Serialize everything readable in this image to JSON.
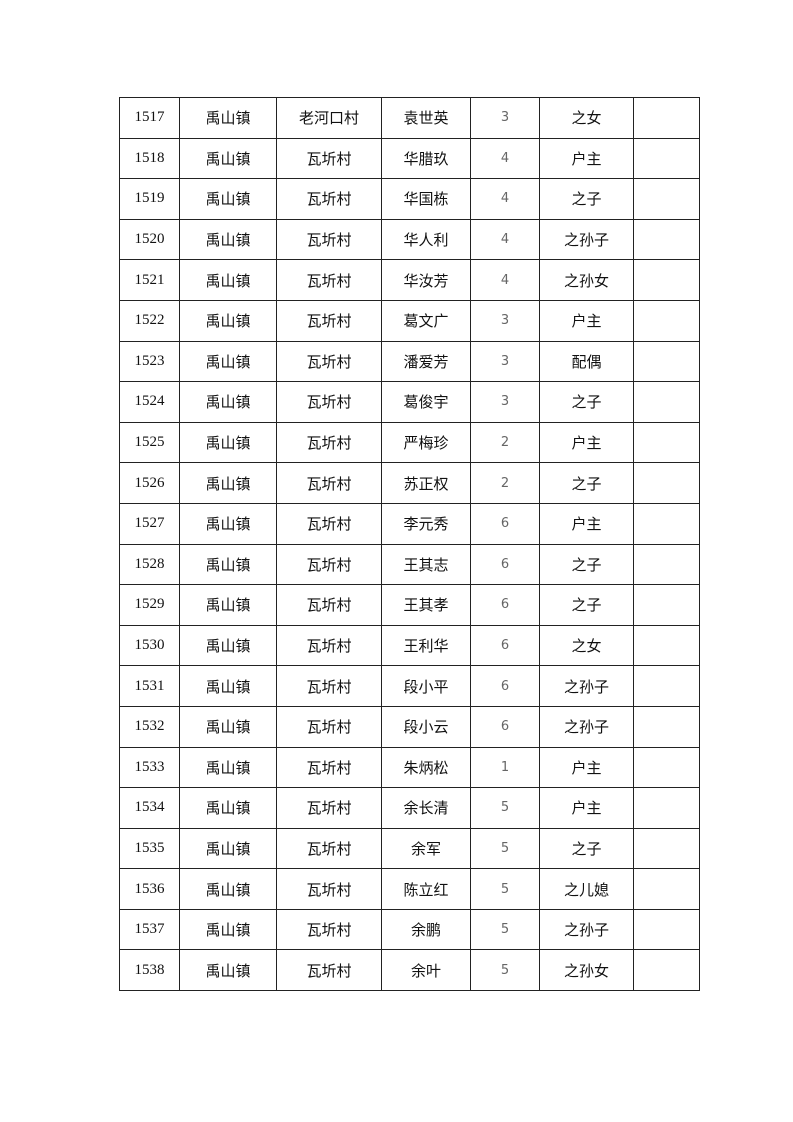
{
  "rows": [
    [
      "1517",
      "禹山镇",
      "老河口村",
      "袁世英",
      "3",
      "之女",
      ""
    ],
    [
      "1518",
      "禹山镇",
      "瓦圻村",
      "华腊玖",
      "4",
      "户主",
      ""
    ],
    [
      "1519",
      "禹山镇",
      "瓦圻村",
      "华国栋",
      "4",
      "之子",
      ""
    ],
    [
      "1520",
      "禹山镇",
      "瓦圻村",
      "华人利",
      "4",
      "之孙子",
      ""
    ],
    [
      "1521",
      "禹山镇",
      "瓦圻村",
      "华汝芳",
      "4",
      "之孙女",
      ""
    ],
    [
      "1522",
      "禹山镇",
      "瓦圻村",
      "葛文广",
      "3",
      "户主",
      ""
    ],
    [
      "1523",
      "禹山镇",
      "瓦圻村",
      "潘爱芳",
      "3",
      "配偶",
      ""
    ],
    [
      "1524",
      "禹山镇",
      "瓦圻村",
      "葛俊宇",
      "3",
      "之子",
      ""
    ],
    [
      "1525",
      "禹山镇",
      "瓦圻村",
      "严梅珍",
      "2",
      "户主",
      ""
    ],
    [
      "1526",
      "禹山镇",
      "瓦圻村",
      "苏正权",
      "2",
      "之子",
      ""
    ],
    [
      "1527",
      "禹山镇",
      "瓦圻村",
      "李元秀",
      "6",
      "户主",
      ""
    ],
    [
      "1528",
      "禹山镇",
      "瓦圻村",
      "王其志",
      "6",
      "之子",
      ""
    ],
    [
      "1529",
      "禹山镇",
      "瓦圻村",
      "王其孝",
      "6",
      "之子",
      ""
    ],
    [
      "1530",
      "禹山镇",
      "瓦圻村",
      "王利华",
      "6",
      "之女",
      ""
    ],
    [
      "1531",
      "禹山镇",
      "瓦圻村",
      "段小平",
      "6",
      "之孙子",
      ""
    ],
    [
      "1532",
      "禹山镇",
      "瓦圻村",
      "段小云",
      "6",
      "之孙子",
      ""
    ],
    [
      "1533",
      "禹山镇",
      "瓦圻村",
      "朱炳松",
      "1",
      "户主",
      ""
    ],
    [
      "1534",
      "禹山镇",
      "瓦圻村",
      "余长清",
      "5",
      "户主",
      ""
    ],
    [
      "1535",
      "禹山镇",
      "瓦圻村",
      "余军",
      "5",
      "之子",
      ""
    ],
    [
      "1536",
      "禹山镇",
      "瓦圻村",
      "陈立红",
      "5",
      "之儿媳",
      ""
    ],
    [
      "1537",
      "禹山镇",
      "瓦圻村",
      "余鹏",
      "5",
      "之孙子",
      ""
    ],
    [
      "1538",
      "禹山镇",
      "瓦圻村",
      "余叶",
      "5",
      "之孙女",
      ""
    ]
  ]
}
